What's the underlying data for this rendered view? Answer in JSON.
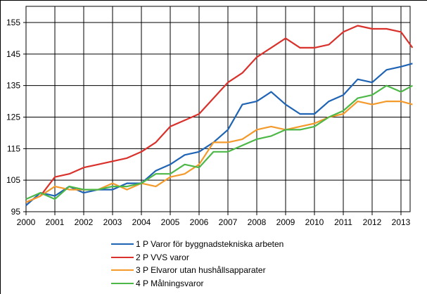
{
  "chart_data": {
    "type": "line",
    "title": "",
    "xlabel": "",
    "ylabel": "",
    "xlim": [
      2000,
      2013.45
    ],
    "ylim": [
      95,
      160
    ],
    "x_ticks": [
      "2000",
      "2001",
      "2002",
      "2003",
      "2004",
      "2005",
      "2006",
      "2007",
      "2008",
      "2009",
      "2010",
      "2011",
      "2012",
      "2013"
    ],
    "y_ticks": [
      95,
      105,
      115,
      125,
      135,
      145,
      155
    ],
    "grid": true,
    "legend_position": "bottom",
    "x": [
      2000,
      2000.5,
      2001,
      2001.5,
      2002,
      2002.5,
      2003,
      2003.5,
      2004,
      2004.5,
      2005,
      2005.5,
      2006,
      2006.5,
      2007,
      2007.5,
      2008,
      2008.5,
      2009,
      2009.5,
      2010,
      2010.5,
      2011,
      2011.5,
      2012,
      2012.5,
      2013,
      2013.4
    ],
    "series": [
      {
        "name": "1 P Varor för byggnadstekniska arbeten",
        "color": "#1f64b4",
        "values": [
          97,
          101,
          100,
          103,
          101,
          102,
          102,
          104,
          104,
          108,
          110,
          113,
          114,
          117,
          121,
          129,
          130,
          133,
          129,
          126,
          126,
          130,
          132,
          137,
          136,
          140,
          141,
          142
        ]
      },
      {
        "name": "2 P VVS varor",
        "color": "#d9312b",
        "values": [
          98,
          100,
          106,
          107,
          109,
          110,
          111,
          112,
          114,
          117,
          122,
          124,
          126,
          131,
          136,
          139,
          144,
          147,
          150,
          147,
          147,
          148,
          152,
          154,
          153,
          153,
          152,
          147
        ]
      },
      {
        "name": "3 P Elvaror utan hushållsapparater",
        "color": "#f39a2b",
        "values": [
          98,
          100,
          103,
          102,
          102,
          102,
          104,
          102,
          104,
          103,
          106,
          107,
          110,
          117,
          117,
          118,
          121,
          122,
          121,
          122,
          123,
          125,
          126,
          130,
          129,
          130,
          130,
          129
        ]
      },
      {
        "name": "4 P Målningsvaror",
        "color": "#4db848",
        "values": [
          99,
          101,
          99,
          103,
          102,
          102,
          103,
          103,
          104,
          107,
          107,
          110,
          109,
          114,
          114,
          116,
          118,
          119,
          121,
          121,
          122,
          125,
          127,
          131,
          132,
          135,
          133,
          135
        ]
      }
    ]
  },
  "legend": {
    "items": [
      {
        "label": "1 P Varor för byggnadstekniska arbeten",
        "color": "#1f64b4"
      },
      {
        "label": "2 P VVS varor",
        "color": "#d9312b"
      },
      {
        "label": "3 P Elvaror utan hushållsapparater",
        "color": "#f39a2b"
      },
      {
        "label": "4 P Målningsvaror",
        "color": "#4db848"
      }
    ]
  }
}
